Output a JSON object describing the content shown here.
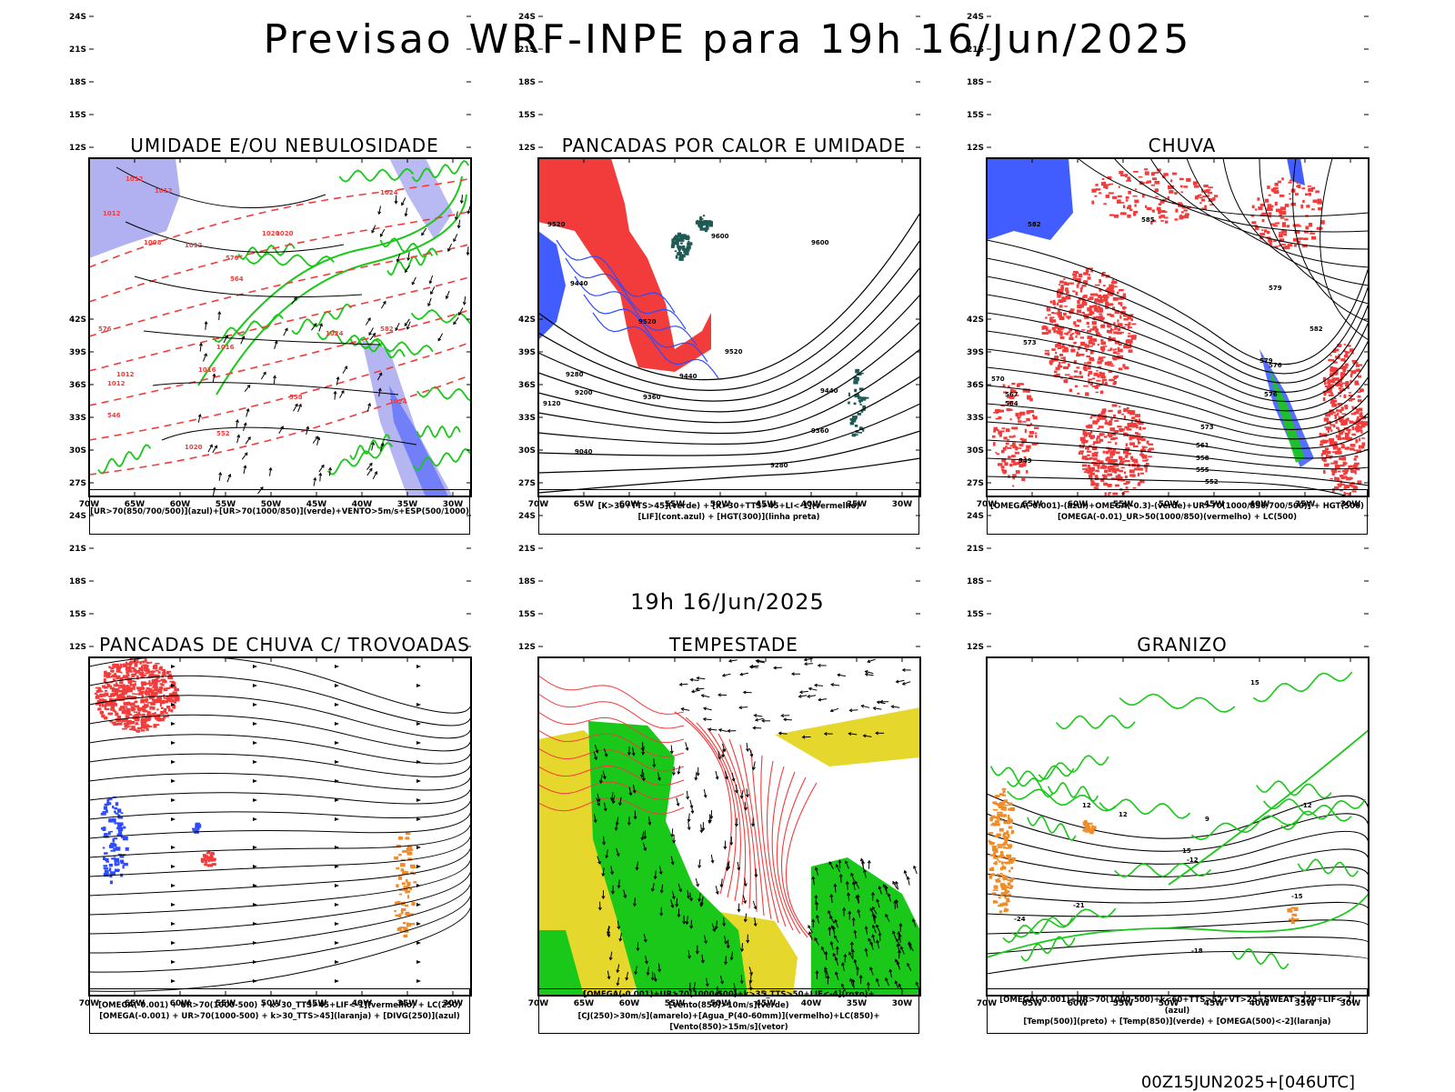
{
  "title": "Previsao WRF-INPE  para 19h 16/Jun/2025",
  "mid_time": "19h 16/Jun/2025",
  "footer": "00Z15JUN2025+[046UTC]",
  "axes": {
    "lat_labels": [
      "12S",
      "15S",
      "18S",
      "21S",
      "24S",
      "27S",
      "30S",
      "33S",
      "36S",
      "39S",
      "42S"
    ],
    "lon_labels": [
      "70W",
      "65W",
      "60W",
      "55W",
      "50W",
      "45W",
      "40W",
      "35W",
      "30W"
    ]
  },
  "colors": {
    "red": "#f23c3c",
    "green": "#19c819",
    "blue": "#2d4bff",
    "lavender": "#a8a8f0",
    "yellow": "#e6d72d",
    "orange": "#f08c28",
    "teal": "#1f5a55",
    "black": "#000000"
  },
  "panels": [
    {
      "id": "umidade",
      "title": "UMIDADE E/OU NEBULOSIDADE",
      "legend": [
        "[UR>70(850/700/500)](azul)+[UR>70(1000/850)](verde)+VENTO>5m/s+ESP(500/1000)"
      ],
      "contour_labels": [
        "1012",
        "1012",
        "1012",
        "1008",
        "1012",
        "1016",
        "1020",
        "1024",
        "1020",
        "1024",
        "1016",
        "1012",
        "1012",
        "1020",
        "1024",
        "570",
        "576",
        "564",
        "558",
        "552",
        "546",
        "582"
      ]
    },
    {
      "id": "pancadas_calor",
      "title": "PANCADAS POR CALOR E UMIDADE",
      "legend": [
        "[K>30+TTS>45](verde) + [K>30+TTS>45+LI<-1](vermelho)",
        "[LIF](cont.azul) + [HGT(300)](linha preta)"
      ],
      "contour_labels": [
        "9520",
        "9600",
        "9600",
        "9440",
        "9520",
        "9280",
        "9200",
        "9120",
        "9360",
        "9040",
        "9520",
        "9440",
        "9440",
        "9360",
        "9280"
      ]
    },
    {
      "id": "chuva",
      "title": "CHUVA",
      "legend": [
        "[OMEGA(-0.001)-(azul)+OMEGA(-0.3)-(verde)+UR>70(1000/850/700/500)] + HGT(500)",
        "[OMEGA(-0.01)_UR>50(1000/850)(vermelho) + LC(500)"
      ],
      "contour_labels": [
        "585",
        "582",
        "579",
        "576",
        "573",
        "570",
        "567",
        "564",
        "561",
        "558",
        "555",
        "552",
        "549",
        "582",
        "579",
        "576",
        "573"
      ]
    },
    {
      "id": "pancadas_trovoadas",
      "title": "PANCADAS DE CHUVA C/ TROVOADAS",
      "legend": [
        "[OMEGA(-0.001) + UR>70(1000-500) + k>30_TTS>45+LIF<-1](vermelho) + LC(250)",
        "[OMEGA(-0.001) + UR>70(1000-500) + k>30_TTS>45](laranja) + [DIVG(250)](azul)"
      ],
      "contour_labels": []
    },
    {
      "id": "tempestade",
      "title": "TEMPESTADE",
      "legend": [
        "[OMEGA(-0.001)+UR>70(1000-500)+k>35_TTS>50+LIF<-4](roxo)+[Vento(850)>10m/s](verde)",
        "[CJ(250)>30m/s](amarelo)+[Agua_P(40-60mm)](vermelho)+LC(850)+[Vento(850)>15m/s](vetor)"
      ],
      "contour_labels": []
    },
    {
      "id": "granizo",
      "title": "GRANIZO",
      "legend": [
        "[OMEGA(-0.001)+UR>70(1000-500)+k<60+TTS>52+VT>25+SWEAT>220+LIF<-2](azul)",
        "[Temp(500)](preto) + [Temp(850)](verde) + [OMEGA(500)<-2](laranja)"
      ],
      "contour_labels": [
        "-12",
        "-12",
        "-15",
        "-18",
        "-21",
        "-24",
        "12",
        "15",
        "9",
        "12",
        "15"
      ]
    }
  ]
}
